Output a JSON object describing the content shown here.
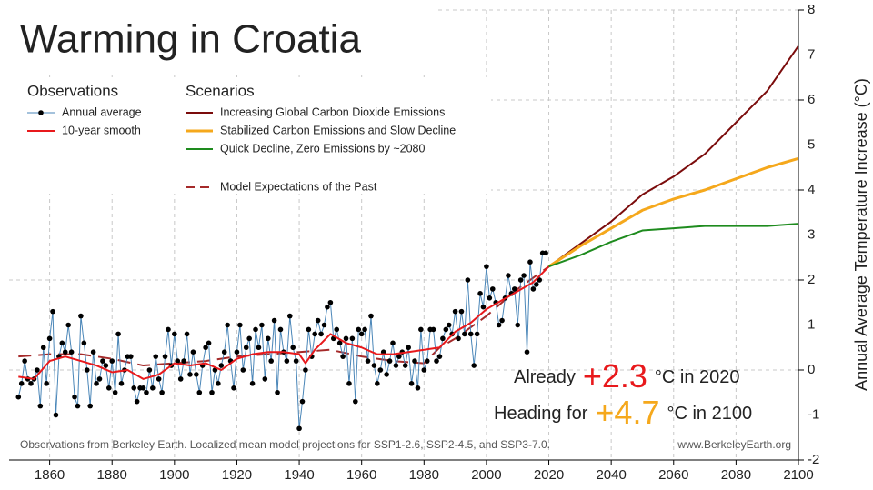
{
  "chart_data": {
    "type": "line",
    "title": "Warming in Croatia",
    "ylabel": "Annual Average Temperature Increase (°C)",
    "xlim": [
      1847,
      2100
    ],
    "ylim": [
      -2,
      8
    ],
    "xticks": [
      1860,
      1880,
      1900,
      1920,
      1940,
      1960,
      1980,
      2000,
      2020,
      2040,
      2060,
      2080,
      2100
    ],
    "yticks": [
      -2,
      -1,
      0,
      1,
      2,
      3,
      4,
      5,
      6,
      7,
      8
    ],
    "grid": true,
    "observations_heading": "Observations",
    "scenarios_heading": "Scenarios",
    "series": [
      {
        "name": "Annual average",
        "color": "#4a86b8",
        "markers": true,
        "x": [
          1850,
          1851,
          1852,
          1853,
          1854,
          1855,
          1856,
          1857,
          1858,
          1859,
          1860,
          1861,
          1862,
          1863,
          1864,
          1865,
          1866,
          1867,
          1868,
          1869,
          1870,
          1871,
          1872,
          1873,
          1874,
          1875,
          1876,
          1877,
          1878,
          1879,
          1880,
          1881,
          1882,
          1883,
          1884,
          1885,
          1886,
          1887,
          1888,
          1889,
          1890,
          1891,
          1892,
          1893,
          1894,
          1895,
          1896,
          1897,
          1898,
          1899,
          1900,
          1901,
          1902,
          1903,
          1904,
          1905,
          1906,
          1907,
          1908,
          1909,
          1910,
          1911,
          1912,
          1913,
          1914,
          1915,
          1916,
          1917,
          1918,
          1919,
          1920,
          1921,
          1922,
          1923,
          1924,
          1925,
          1926,
          1927,
          1928,
          1929,
          1930,
          1931,
          1932,
          1933,
          1934,
          1935,
          1936,
          1937,
          1938,
          1939,
          1940,
          1941,
          1942,
          1943,
          1944,
          1945,
          1946,
          1947,
          1948,
          1949,
          1950,
          1951,
          1952,
          1953,
          1954,
          1955,
          1956,
          1957,
          1958,
          1959,
          1960,
          1961,
          1962,
          1963,
          1964,
          1965,
          1966,
          1967,
          1968,
          1969,
          1970,
          1971,
          1972,
          1973,
          1974,
          1975,
          1976,
          1977,
          1978,
          1979,
          1980,
          1981,
          1982,
          1983,
          1984,
          1985,
          1986,
          1987,
          1988,
          1989,
          1990,
          1991,
          1992,
          1993,
          1994,
          1995,
          1996,
          1997,
          1998,
          1999,
          2000,
          2001,
          2002,
          2003,
          2004,
          2005,
          2006,
          2007,
          2008,
          2009,
          2010,
          2011,
          2012,
          2013,
          2014,
          2015,
          2016,
          2017,
          2018,
          2019
        ],
        "values": [
          -0.6,
          -0.3,
          0.2,
          -0.2,
          -0.3,
          -0.2,
          0.0,
          -0.8,
          0.5,
          -0.3,
          0.7,
          1.3,
          -1.0,
          0.3,
          0.6,
          0.4,
          1.0,
          0.4,
          -0.6,
          -0.8,
          1.2,
          0.6,
          0.0,
          -0.8,
          0.4,
          -0.3,
          -0.2,
          0.2,
          0.1,
          -0.4,
          0.2,
          -0.5,
          0.8,
          -0.3,
          0.0,
          0.3,
          0.3,
          -0.4,
          -0.7,
          -0.4,
          -0.4,
          -0.5,
          0.0,
          -0.4,
          0.3,
          -0.2,
          -0.5,
          0.3,
          0.9,
          0.1,
          0.8,
          0.2,
          -0.2,
          0.2,
          0.8,
          -0.1,
          0.4,
          -0.1,
          -0.5,
          0.1,
          0.5,
          0.6,
          -0.5,
          0.0,
          -0.3,
          0.1,
          0.4,
          1.0,
          0.2,
          -0.4,
          0.4,
          1.0,
          0.0,
          0.5,
          0.7,
          -0.3,
          0.9,
          0.5,
          1.0,
          -0.2,
          0.7,
          0.2,
          1.1,
          -0.5,
          0.9,
          0.4,
          0.2,
          1.2,
          0.5,
          0.2,
          -1.3,
          -0.7,
          0.0,
          0.9,
          0.3,
          0.8,
          1.1,
          0.8,
          1.0,
          1.4,
          1.5,
          0.7,
          0.9,
          0.6,
          0.3,
          0.7,
          -0.3,
          0.7,
          -0.7,
          0.9,
          0.8,
          0.9,
          0.2,
          1.2,
          0.1,
          -0.3,
          0.0,
          0.4,
          -0.1,
          0.2,
          0.6,
          0.1,
          0.3,
          0.4,
          0.1,
          0.5,
          -0.3,
          0.2,
          -0.4,
          0.9,
          0.0,
          0.2,
          0.9,
          0.9,
          0.2,
          0.3,
          0.7,
          0.9,
          1.0,
          0.8,
          1.3,
          0.7,
          1.3,
          0.8,
          2.0,
          0.8,
          0.1,
          0.8,
          1.7,
          1.4,
          2.3,
          1.6,
          1.8,
          1.5,
          1.0,
          1.1,
          1.6,
          2.1,
          1.7,
          1.8,
          1.0,
          2.0,
          2.1,
          0.4,
          2.4,
          1.8,
          1.9,
          2.0,
          2.6,
          2.6
        ]
      },
      {
        "name": "10-year smooth",
        "color": "#e8191c",
        "width": 2,
        "x": [
          1850,
          1855,
          1860,
          1865,
          1870,
          1875,
          1880,
          1885,
          1890,
          1895,
          1900,
          1905,
          1910,
          1915,
          1920,
          1925,
          1930,
          1935,
          1940,
          1942,
          1945,
          1950,
          1955,
          1960,
          1965,
          1970,
          1975,
          1980,
          1985,
          1990,
          1995,
          2000,
          2005,
          2010,
          2015,
          2020
        ],
        "values": [
          -0.15,
          -0.2,
          0.2,
          0.3,
          0.2,
          0.1,
          -0.05,
          0.0,
          -0.2,
          -0.1,
          0.15,
          0.1,
          0.15,
          0.0,
          0.25,
          0.35,
          0.4,
          0.4,
          0.35,
          0.15,
          0.45,
          0.8,
          0.6,
          0.5,
          0.35,
          0.35,
          0.4,
          0.45,
          0.5,
          0.85,
          1.05,
          1.35,
          1.55,
          1.75,
          1.95,
          2.3
        ]
      },
      {
        "name": "Increasing Global Carbon Dioxide Emissions",
        "color": "#7b0c0c",
        "width": 2,
        "x": [
          2020,
          2030,
          2040,
          2050,
          2060,
          2070,
          2080,
          2090,
          2100
        ],
        "values": [
          2.3,
          2.8,
          3.3,
          3.9,
          4.3,
          4.8,
          5.5,
          6.2,
          7.2
        ]
      },
      {
        "name": "Stabilized Carbon Emissions and Slow Decline",
        "color": "#f5a81c",
        "width": 3,
        "x": [
          2020,
          2030,
          2040,
          2050,
          2060,
          2070,
          2080,
          2090,
          2100
        ],
        "values": [
          2.3,
          2.75,
          3.15,
          3.55,
          3.8,
          4.0,
          4.25,
          4.5,
          4.7
        ]
      },
      {
        "name": "Quick Decline, Zero Emissions by ~2080",
        "color": "#1e8b1e",
        "width": 2,
        "x": [
          2020,
          2030,
          2040,
          2050,
          2060,
          2070,
          2080,
          2090,
          2100
        ],
        "values": [
          2.3,
          2.55,
          2.85,
          3.1,
          3.15,
          3.2,
          3.2,
          3.2,
          3.25
        ]
      },
      {
        "name": "Model Expectations of the Past",
        "color": "#a52a2a",
        "width": 2,
        "dashed": true,
        "x": [
          1850,
          1860,
          1870,
          1880,
          1890,
          1900,
          1910,
          1920,
          1930,
          1940,
          1950,
          1960,
          1970,
          1980,
          1985,
          1990,
          2000,
          2010,
          2020
        ],
        "values": [
          0.3,
          0.35,
          0.35,
          0.25,
          0.1,
          0.15,
          0.2,
          0.3,
          0.35,
          0.4,
          0.45,
          0.3,
          0.2,
          0.15,
          0.5,
          0.7,
          1.2,
          1.8,
          2.3
        ]
      }
    ],
    "annotations": [
      {
        "lead": "Already",
        "value": "+2.3",
        "color": "#e8191c",
        "tail": "°C in 2020"
      },
      {
        "lead": "Heading for",
        "value": "+4.7",
        "color": "#f5a81c",
        "tail": "°C in 2100"
      }
    ],
    "footnote": "Observations from Berkeley Earth. Localized mean model projections for SSP1-2.6, SSP2-4.5, and SSP3-7.0.",
    "source": "www.BerkeleyEarth.org"
  }
}
